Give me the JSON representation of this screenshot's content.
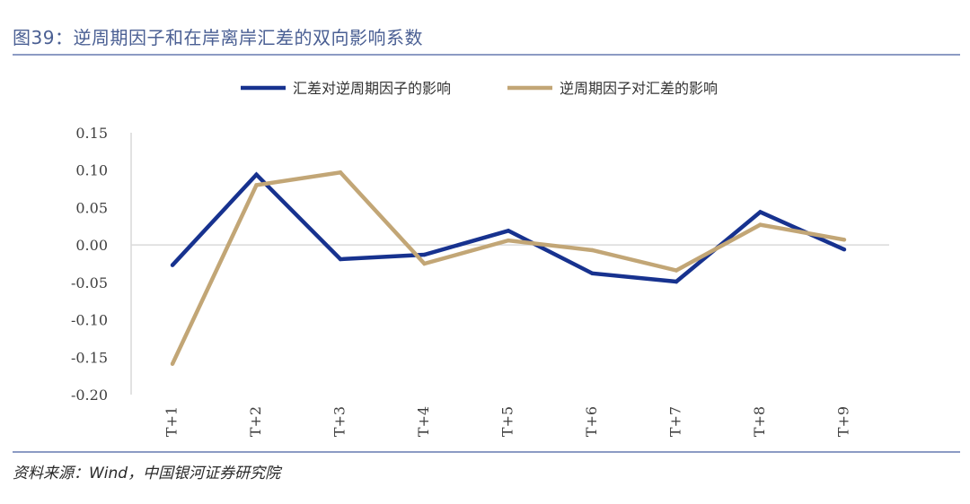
{
  "figure": {
    "title": "图39：逆周期因子和在岸离岸汇差的双向影响系数",
    "source": "资料来源：Wind，中国银河证券研究院"
  },
  "colors": {
    "series1": "#17328f",
    "series2": "#c2a676",
    "axis": "#d9d9d9",
    "rule": "#8c9bc4",
    "title": "#4a5f93"
  },
  "chart_data": {
    "type": "line",
    "title": "图39：逆周期因子和在岸离岸汇差的双向影响系数",
    "xlabel": "",
    "ylabel": "",
    "categories": [
      "T+1",
      "T+2",
      "T+3",
      "T+4",
      "T+5",
      "T+6",
      "T+7",
      "T+8",
      "T+9"
    ],
    "ylim": [
      -0.2,
      0.15
    ],
    "yticks": [
      "0.15",
      "0.10",
      "0.05",
      "0.00",
      "-0.05",
      "-0.10",
      "-0.15",
      "-0.20"
    ],
    "ytick_values": [
      0.15,
      0.1,
      0.05,
      0.0,
      -0.05,
      -0.1,
      -0.15,
      -0.2
    ],
    "grid": false,
    "legend_position": "top-center",
    "series": [
      {
        "name": "汇差对逆周期因子的影响",
        "color": "#17328f",
        "values": [
          -0.027,
          0.094,
          -0.019,
          -0.013,
          0.019,
          -0.038,
          -0.049,
          0.044,
          -0.006
        ]
      },
      {
        "name": "逆周期因子对汇差的影响",
        "color": "#c2a676",
        "values": [
          -0.159,
          0.08,
          0.097,
          -0.025,
          0.006,
          -0.007,
          -0.034,
          0.027,
          0.007
        ]
      }
    ]
  }
}
